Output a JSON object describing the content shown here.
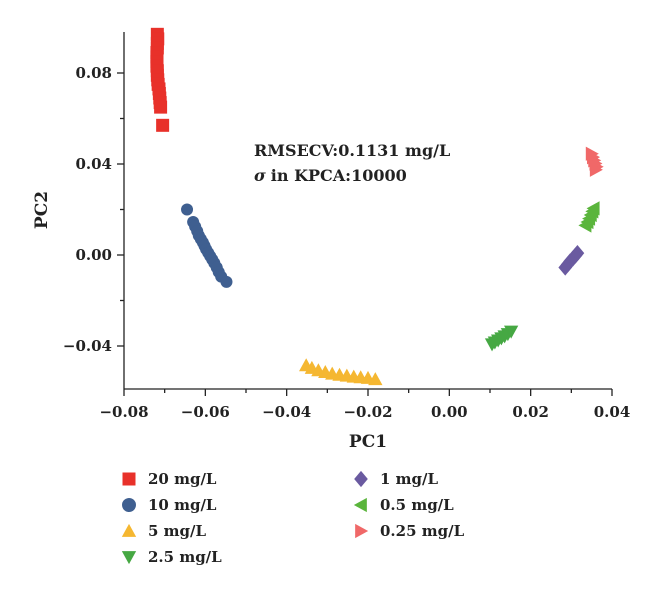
{
  "chart_data": {
    "type": "scatter",
    "xlabel": "PC1",
    "ylabel": "PC2",
    "xlim": [
      -0.08,
      0.04
    ],
    "ylim": [
      -0.06,
      0.1
    ],
    "x_ticks": [
      "-0.08",
      "-0.06",
      "-0.04",
      "-0.02",
      "0.00",
      "0.02",
      "0.04"
    ],
    "y_ticks": [
      "0.08",
      "0.04",
      "0.00",
      "-0.04"
    ],
    "annotations": [
      "RMSECV:0.1131 mg/L",
      "in KPCA:10000"
    ],
    "annotation_symbol": "σ",
    "legend_placement": "bottom",
    "series": [
      {
        "name": "20 mg/L",
        "marker": "square",
        "color": "#e8312a",
        "points": [
          [
            -0.0718,
            0.097
          ],
          [
            -0.0717,
            0.095
          ],
          [
            -0.0718,
            0.093
          ],
          [
            -0.0718,
            0.091
          ],
          [
            -0.0719,
            0.089
          ],
          [
            -0.0719,
            0.087
          ],
          [
            -0.0719,
            0.085
          ],
          [
            -0.0719,
            0.083
          ],
          [
            -0.0718,
            0.081
          ],
          [
            -0.0718,
            0.079
          ],
          [
            -0.0717,
            0.077
          ],
          [
            -0.0716,
            0.075
          ],
          [
            -0.0714,
            0.073
          ],
          [
            -0.0713,
            0.071
          ],
          [
            -0.0712,
            0.069
          ],
          [
            -0.0711,
            0.067
          ],
          [
            -0.071,
            0.065
          ],
          [
            -0.0705,
            0.057
          ]
        ]
      },
      {
        "name": "10 mg/L",
        "marker": "circle",
        "color": "#3f5f90",
        "points": [
          [
            -0.0645,
            0.02
          ],
          [
            -0.063,
            0.0145
          ],
          [
            -0.0625,
            0.0125
          ],
          [
            -0.062,
            0.0105
          ],
          [
            -0.0616,
            0.0085
          ],
          [
            -0.0611,
            0.007
          ],
          [
            -0.0606,
            0.0055
          ],
          [
            -0.0602,
            0.004
          ],
          [
            -0.0598,
            0.0025
          ],
          [
            -0.0593,
            0.001
          ],
          [
            -0.0588,
            -0.0005
          ],
          [
            -0.0583,
            -0.002
          ],
          [
            -0.0578,
            -0.0035
          ],
          [
            -0.0572,
            -0.0055
          ],
          [
            -0.0567,
            -0.0075
          ],
          [
            -0.0561,
            -0.0095
          ],
          [
            -0.0548,
            -0.0118
          ]
        ]
      },
      {
        "name": "5 mg/L",
        "marker": "triangle-up",
        "color": "#f5b731",
        "points": [
          [
            -0.0352,
            -0.0485
          ],
          [
            -0.0338,
            -0.0497
          ],
          [
            -0.0322,
            -0.0507
          ],
          [
            -0.0305,
            -0.0515
          ],
          [
            -0.0288,
            -0.0522
          ],
          [
            -0.027,
            -0.0527
          ],
          [
            -0.0252,
            -0.0531
          ],
          [
            -0.0235,
            -0.0535
          ],
          [
            -0.0218,
            -0.0538
          ],
          [
            -0.02,
            -0.0541
          ],
          [
            -0.0182,
            -0.0546
          ]
        ]
      },
      {
        "name": "2.5 mg/L",
        "marker": "triangle-down",
        "color": "#46a843",
        "points": [
          [
            0.0105,
            -0.0392
          ],
          [
            0.0112,
            -0.0384
          ],
          [
            0.012,
            -0.0375
          ],
          [
            0.0128,
            -0.0366
          ],
          [
            0.0136,
            -0.0357
          ],
          [
            0.0144,
            -0.0347
          ],
          [
            0.0152,
            -0.0336
          ]
        ]
      },
      {
        "name": "1 mg/L",
        "marker": "diamond",
        "color": "#6a5aa0",
        "points": [
          [
            0.0285,
            -0.0055
          ],
          [
            0.0291,
            -0.0042
          ],
          [
            0.0297,
            -0.0028
          ],
          [
            0.0304,
            -0.0015
          ],
          [
            0.031,
            -0.0003
          ],
          [
            0.0315,
            0.0008
          ]
        ]
      },
      {
        "name": "0.5 mg/L",
        "marker": "triangle-left",
        "color": "#5ab53c",
        "points": [
          [
            0.0335,
            0.013
          ],
          [
            0.034,
            0.0145
          ],
          [
            0.0344,
            0.016
          ],
          [
            0.0348,
            0.0176
          ],
          [
            0.0352,
            0.0192
          ],
          [
            0.0355,
            0.0205
          ]
        ]
      },
      {
        "name": "0.25 mg/L",
        "marker": "triangle-right",
        "color": "#f06868",
        "points": [
          [
            0.035,
            0.0445
          ],
          [
            0.0353,
            0.043
          ],
          [
            0.0356,
            0.0416
          ],
          [
            0.0359,
            0.0402
          ],
          [
            0.0362,
            0.0388
          ],
          [
            0.036,
            0.0375
          ]
        ]
      }
    ]
  }
}
